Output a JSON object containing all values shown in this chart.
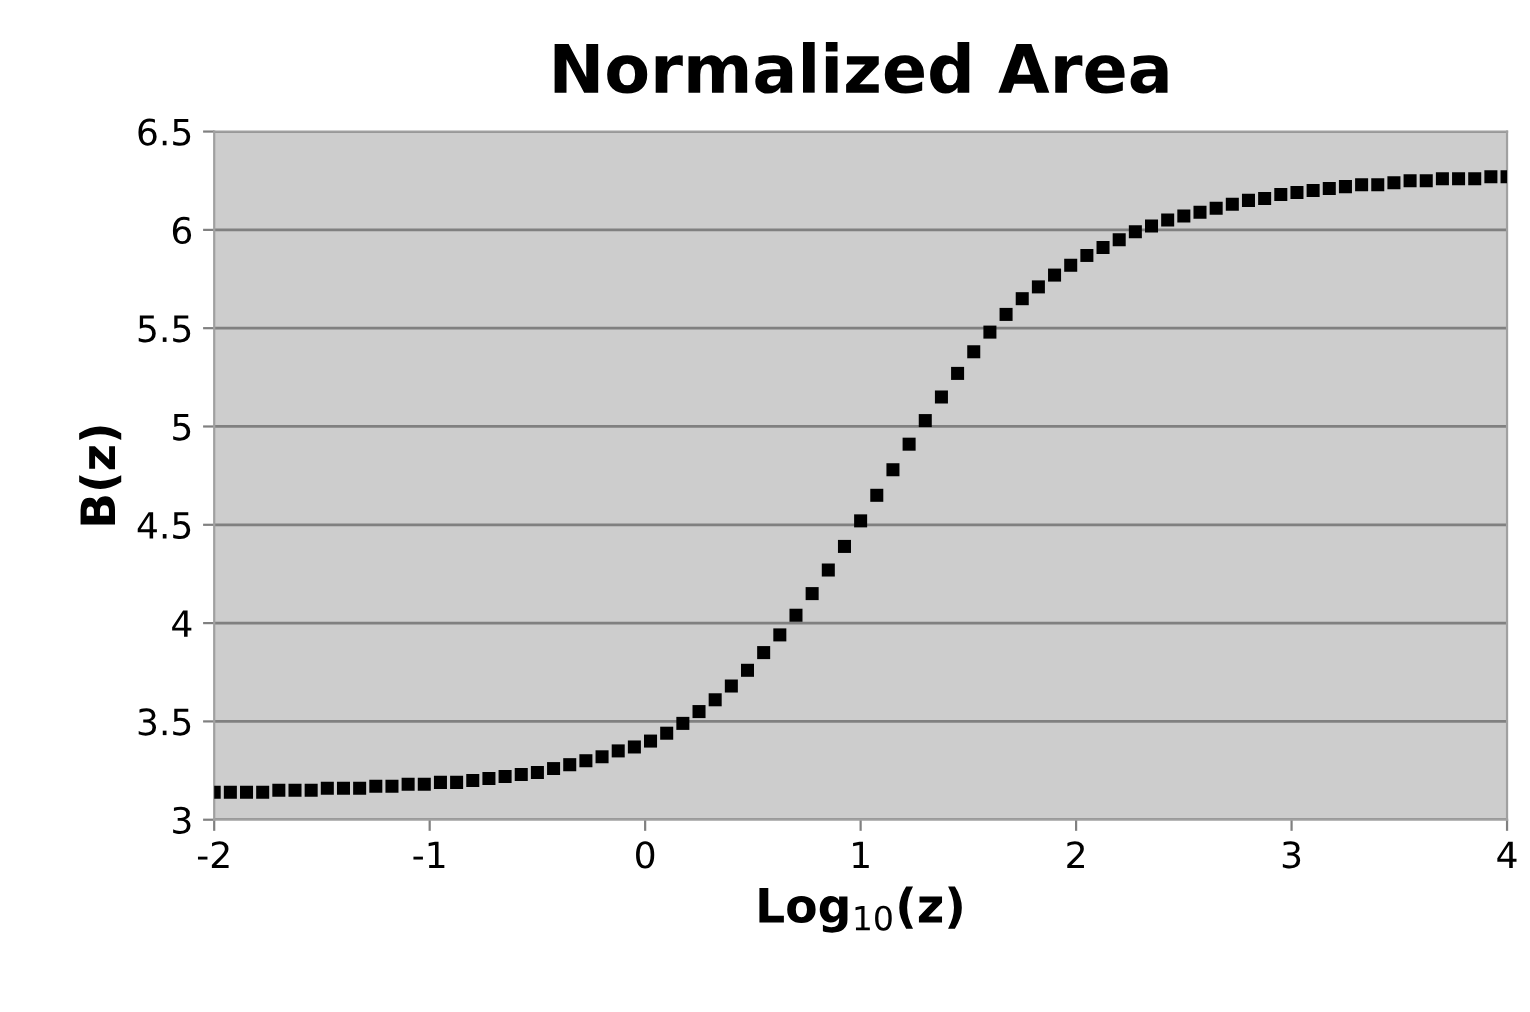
{
  "chart_data": {
    "type": "scatter",
    "title": "Normalized Area",
    "xlabel": "Log$_{10}$(z)",
    "ylabel": "B(z)",
    "xlim": [
      -2,
      4
    ],
    "xticks": [
      -2,
      -1,
      0,
      1,
      2,
      3,
      4
    ],
    "ylim": [
      3,
      6.5
    ],
    "yticks": [
      3,
      3.5,
      4,
      4.5,
      5,
      5.5,
      6,
      6.5
    ],
    "grid": "y",
    "marker": "square",
    "series": [
      {
        "color": "#000000",
        "x": [
          -2.0,
          -1.925,
          -1.85,
          -1.775,
          -1.7,
          -1.625,
          -1.55,
          -1.475,
          -1.4,
          -1.325,
          -1.25,
          -1.175,
          -1.1,
          -1.025,
          -0.95,
          -0.875,
          -0.8,
          -0.725,
          -0.65,
          -0.575,
          -0.5,
          -0.425,
          -0.35,
          -0.275,
          -0.2,
          -0.125,
          -0.05,
          0.025,
          0.1,
          0.175,
          0.25,
          0.325,
          0.4,
          0.475,
          0.55,
          0.625,
          0.7,
          0.775,
          0.85,
          0.925,
          1.0,
          1.075,
          1.15,
          1.225,
          1.3,
          1.375,
          1.45,
          1.525,
          1.6,
          1.675,
          1.75,
          1.825,
          1.9,
          1.975,
          2.05,
          2.125,
          2.2,
          2.275,
          2.35,
          2.425,
          2.5,
          2.575,
          2.65,
          2.725,
          2.8,
          2.875,
          2.95,
          3.025,
          3.1,
          3.175,
          3.25,
          3.325,
          3.4,
          3.475,
          3.55,
          3.625,
          3.7,
          3.775,
          3.85,
          3.925,
          4.0
        ],
        "values": [
          3.14,
          3.14,
          3.14,
          3.14,
          3.15,
          3.15,
          3.15,
          3.16,
          3.16,
          3.16,
          3.17,
          3.17,
          3.18,
          3.18,
          3.19,
          3.19,
          3.2,
          3.21,
          3.22,
          3.23,
          3.24,
          3.26,
          3.28,
          3.3,
          3.32,
          3.35,
          3.37,
          3.4,
          3.44,
          3.49,
          3.55,
          3.61,
          3.68,
          3.76,
          3.85,
          3.94,
          4.04,
          4.15,
          4.27,
          4.39,
          4.52,
          4.65,
          4.78,
          4.91,
          5.03,
          5.15,
          5.27,
          5.38,
          5.48,
          5.57,
          5.65,
          5.71,
          5.77,
          5.82,
          5.87,
          5.91,
          5.95,
          5.99,
          6.02,
          6.05,
          6.07,
          6.09,
          6.11,
          6.13,
          6.15,
          6.16,
          6.18,
          6.19,
          6.2,
          6.21,
          6.22,
          6.23,
          6.23,
          6.24,
          6.25,
          6.25,
          6.26,
          6.26,
          6.26,
          6.27,
          6.27
        ]
      }
    ]
  }
}
